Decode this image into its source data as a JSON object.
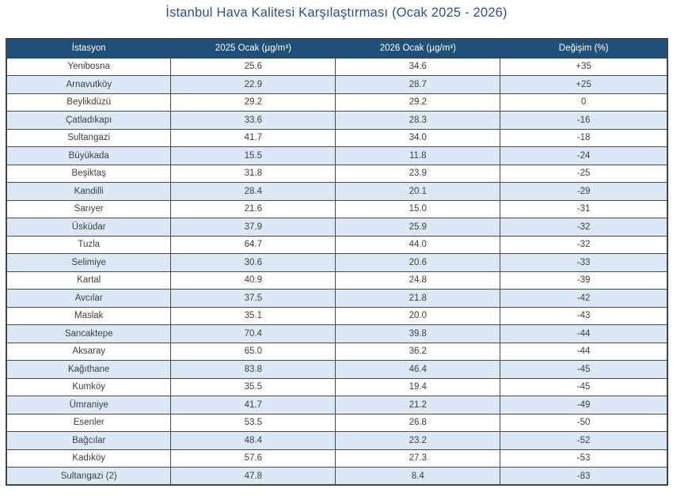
{
  "title": "İstanbul Hava Kalitesi Karşılaştırması (Ocak 2025 - 2026)",
  "colors": {
    "title_text": "#2d5186",
    "header_bg": "#1f4e79",
    "header_text": "#ffffff",
    "row_bg": "#ffffff",
    "row_alt_bg": "#dce9f5",
    "border": "#4a4a4a",
    "cell_text": "#3c4043"
  },
  "chart_data": {
    "type": "table",
    "title": "İstanbul Hava Kalitesi Karşılaştırması (Ocak 2025 - 2026)",
    "columns": [
      "İstasyon",
      "2025 Ocak (µg/m³)",
      "2026 Ocak (µg/m³)",
      "Değişim (%)"
    ],
    "rows": [
      [
        "Yenibosna",
        "25.6",
        "34.6",
        "+35"
      ],
      [
        "Arnavutköy",
        "22.9",
        "28.7",
        "+25"
      ],
      [
        "Beylikdüzü",
        "29.2",
        "29.2",
        "0"
      ],
      [
        "Çatladıkapı",
        "33.6",
        "28.3",
        "-16"
      ],
      [
        "Sultangazi",
        "41.7",
        "34.0",
        "-18"
      ],
      [
        "Büyükada",
        "15.5",
        "11.8",
        "-24"
      ],
      [
        "Beşiktaş",
        "31.8",
        "23.9",
        "-25"
      ],
      [
        "Kandilli",
        "28.4",
        "20.1",
        "-29"
      ],
      [
        "Sarıyer",
        "21.6",
        "15.0",
        "-31"
      ],
      [
        "Üsküdar",
        "37.9",
        "25.9",
        "-32"
      ],
      [
        "Tuzla",
        "64.7",
        "44.0",
        "-32"
      ],
      [
        "Selimiye",
        "30.6",
        "20.6",
        "-33"
      ],
      [
        "Kartal",
        "40.9",
        "24.8",
        "-39"
      ],
      [
        "Avcılar",
        "37.5",
        "21.8",
        "-42"
      ],
      [
        "Maslak",
        "35.1",
        "20.0",
        "-43"
      ],
      [
        "Sancaktepe",
        "70.4",
        "39.8",
        "-44"
      ],
      [
        "Aksaray",
        "65.0",
        "36.2",
        "-44"
      ],
      [
        "Kağıthane",
        "83.8",
        "46.4",
        "-45"
      ],
      [
        "Kumköy",
        "35.5",
        "19.4",
        "-45"
      ],
      [
        "Ümraniye",
        "41.7",
        "21.2",
        "-49"
      ],
      [
        "Esenler",
        "53.5",
        "26.8",
        "-50"
      ],
      [
        "Bağcılar",
        "48.4",
        "23.2",
        "-52"
      ],
      [
        "Kadıköy",
        "57.6",
        "27.3",
        "-53"
      ],
      [
        "Sultangazi (2)",
        "47.8",
        "8.4",
        "-83"
      ]
    ]
  }
}
